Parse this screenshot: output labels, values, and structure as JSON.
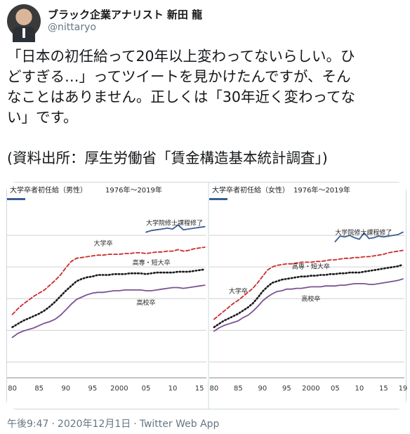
{
  "author": {
    "name": "ブラック企業アナリスト 新田 龍",
    "handle": "@nittaryo"
  },
  "tweet": {
    "lines": [
      "「日本の初任給って20年以上変わってないらしい。ひ",
      "どすぎる…」ってツイートを見かけたんですが、そん",
      "なことはありません。正しくは「30年近く変わってな",
      "い」です。"
    ],
    "source": "(資料出所：厚生労働省「賃金構造基本統計調査」)"
  },
  "footer": {
    "time": "午後9:47",
    "date": "2020年12月1日",
    "client": "Twitter Web App"
  },
  "colors": {
    "daigakuinshuushi": "#3a5e95",
    "daigaku": "#cc2a2a",
    "koutou_tandai": "#1a1a1a",
    "koukou": "#7b5294",
    "grid": "#d0d0d0"
  },
  "chart_data": [
    {
      "type": "line",
      "title": "大学卒者初任給（男性）",
      "subtitle": "1976年～2019年",
      "x": [
        1980,
        1981,
        1982,
        1983,
        1984,
        1985,
        1986,
        1987,
        1988,
        1989,
        1990,
        1991,
        1992,
        1993,
        1994,
        1995,
        1996,
        1997,
        1998,
        1999,
        2000,
        2001,
        2002,
        2003,
        2004,
        2005,
        2006,
        2007,
        2008,
        2009,
        2010,
        2011,
        2012,
        2013,
        2014,
        2015,
        2016
      ],
      "xticks": [
        "80",
        "85",
        "90",
        "95",
        "2000",
        "05",
        "10",
        "15"
      ],
      "series": [
        {
          "name": "大学院修士課程修了",
          "dash": "solid",
          "values": [
            null,
            null,
            null,
            null,
            null,
            null,
            null,
            null,
            null,
            null,
            null,
            null,
            null,
            null,
            null,
            null,
            null,
            null,
            null,
            null,
            null,
            null,
            null,
            null,
            null,
            224,
            226,
            227,
            228,
            229,
            228,
            233,
            227,
            228,
            229,
            230,
            231
          ]
        },
        {
          "name": "大学卒",
          "dash": "dashed",
          "values": [
            120,
            127,
            133,
            138,
            143,
            147,
            151,
            157,
            163,
            170,
            179,
            187,
            191,
            192,
            193,
            194,
            195,
            195,
            196,
            196,
            196,
            197,
            197,
            198,
            198,
            197,
            198,
            199,
            199,
            200,
            200,
            202,
            200,
            201,
            203,
            204,
            205
          ]
        },
        {
          "name": "高専・短大卒",
          "dash": "dotted",
          "values": [
            104,
            108,
            112,
            115,
            118,
            121,
            125,
            130,
            136,
            143,
            150,
            156,
            162,
            165,
            167,
            168,
            170,
            170,
            170,
            171,
            171,
            171,
            172,
            172,
            172,
            171,
            172,
            173,
            173,
            173,
            173,
            174,
            174,
            174,
            175,
            176,
            177
          ]
        },
        {
          "name": "高校卒",
          "dash": "solid",
          "values": [
            91,
            96,
            99,
            101,
            103,
            106,
            109,
            111,
            114,
            119,
            126,
            133,
            139,
            142,
            145,
            147,
            148,
            148,
            149,
            150,
            150,
            151,
            151,
            151,
            151,
            150,
            150,
            151,
            152,
            153,
            154,
            154,
            153,
            154,
            155,
            156,
            157
          ]
        }
      ]
    },
    {
      "type": "line",
      "title": "大学卒者初任給（女性）",
      "subtitle": "1976年～2019年",
      "x": [
        1980,
        1981,
        1982,
        1983,
        1984,
        1985,
        1986,
        1987,
        1988,
        1989,
        1990,
        1991,
        1992,
        1993,
        1994,
        1995,
        1996,
        1997,
        1998,
        1999,
        2000,
        2001,
        2002,
        2003,
        2004,
        2005,
        2006,
        2007,
        2008,
        2009,
        2010,
        2011,
        2012,
        2013,
        2014,
        2015,
        2016,
        2017,
        2018,
        2019
      ],
      "xticks": [
        "80",
        "85",
        "90",
        "95",
        "2000",
        "05",
        "10",
        "15",
        "19"
      ],
      "series": [
        {
          "name": "大学院修士課程修了",
          "dash": "solid",
          "values": [
            null,
            null,
            null,
            null,
            null,
            null,
            null,
            null,
            null,
            null,
            null,
            null,
            null,
            null,
            null,
            null,
            null,
            null,
            null,
            null,
            null,
            null,
            null,
            null,
            null,
            212,
            219,
            218,
            220,
            217,
            215,
            223,
            216,
            217,
            219,
            218,
            219,
            220,
            221,
            224
          ]
        },
        {
          "name": "大学卒",
          "dash": "dashed",
          "values": [
            114,
            119,
            124,
            129,
            134,
            138,
            143,
            148,
            153,
            160,
            168,
            176,
            180,
            182,
            183,
            184,
            184,
            185,
            186,
            186,
            186,
            187,
            187,
            188,
            189,
            189,
            190,
            191,
            191,
            192,
            192,
            193,
            193,
            194,
            195,
            196,
            198,
            199,
            200,
            201
          ]
        },
        {
          "name": "高専・短大卒",
          "dash": "dotted",
          "values": [
            104,
            108,
            112,
            115,
            118,
            121,
            125,
            129,
            134,
            141,
            149,
            155,
            160,
            162,
            164,
            165,
            166,
            167,
            168,
            168,
            169,
            169,
            170,
            170,
            171,
            171,
            172,
            172,
            173,
            173,
            173,
            174,
            175,
            176,
            177,
            178,
            179,
            180,
            181,
            183
          ]
        },
        {
          "name": "高校卒",
          "dash": "solid",
          "values": [
            99,
            103,
            106,
            108,
            110,
            112,
            116,
            119,
            124,
            130,
            137,
            142,
            146,
            149,
            150,
            152,
            152,
            153,
            153,
            154,
            155,
            155,
            155,
            156,
            156,
            156,
            157,
            157,
            158,
            159,
            159,
            159,
            158,
            158,
            159,
            160,
            161,
            162,
            163,
            165
          ]
        }
      ]
    }
  ]
}
